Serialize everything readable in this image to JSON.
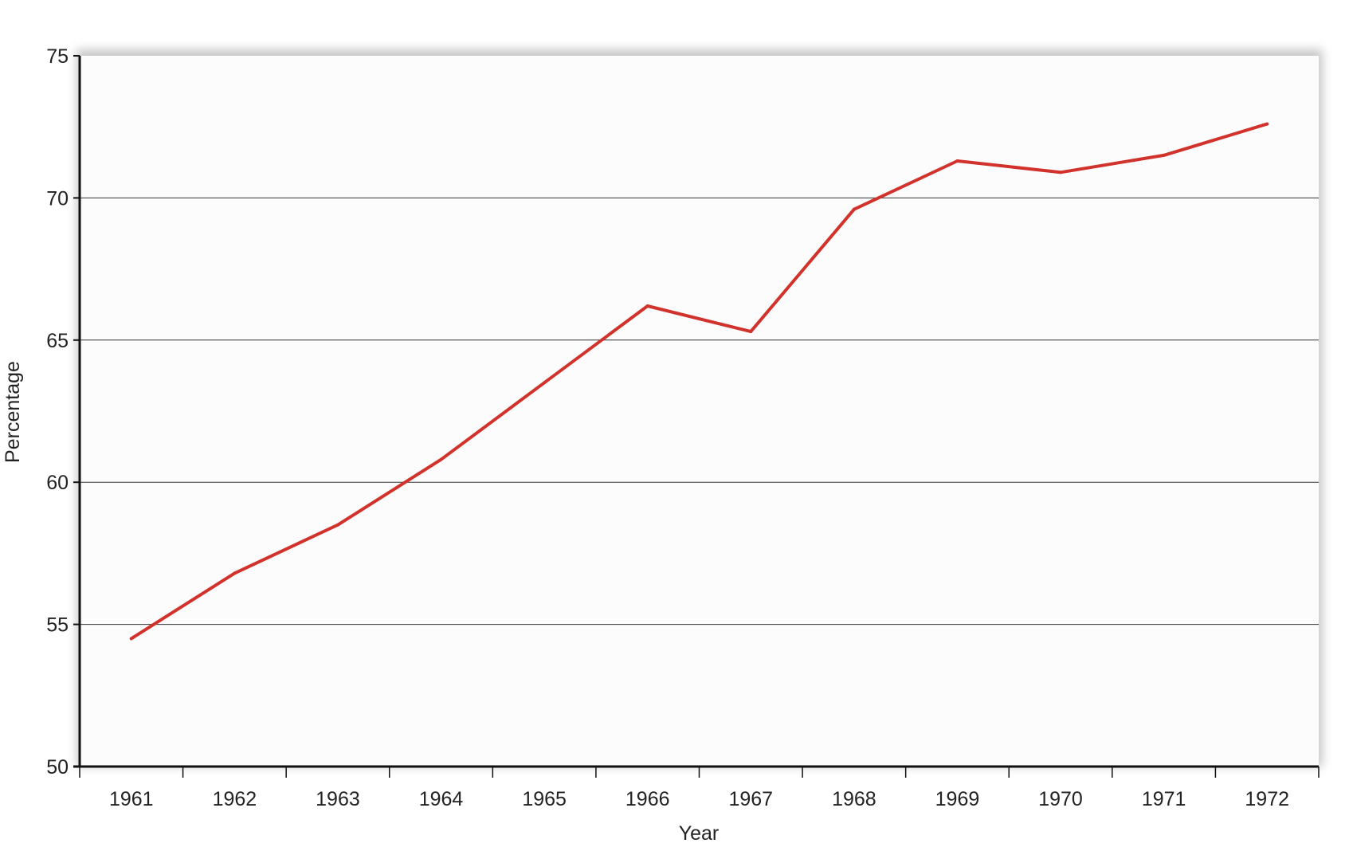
{
  "chart_data": {
    "type": "line",
    "title": "",
    "xlabel": "Year",
    "ylabel": "Percentage",
    "categories": [
      "1961",
      "1962",
      "1963",
      "1964",
      "1965",
      "1966",
      "1967",
      "1968",
      "1969",
      "1970",
      "1971",
      "1972"
    ],
    "series": [
      {
        "values": [
          54.5,
          56.8,
          58.5,
          60.8,
          63.5,
          66.2,
          65.3,
          69.6,
          71.3,
          70.9,
          71.5,
          72.6
        ]
      }
    ],
    "ylim": [
      50,
      75
    ],
    "yticks": [
      50,
      55,
      60,
      65,
      70,
      75
    ],
    "grid": true,
    "legend": "none",
    "colors": {
      "line": "#d1322b",
      "grid": "#333333",
      "axis": "#111111",
      "plot_background": "#fcfcfc"
    }
  }
}
